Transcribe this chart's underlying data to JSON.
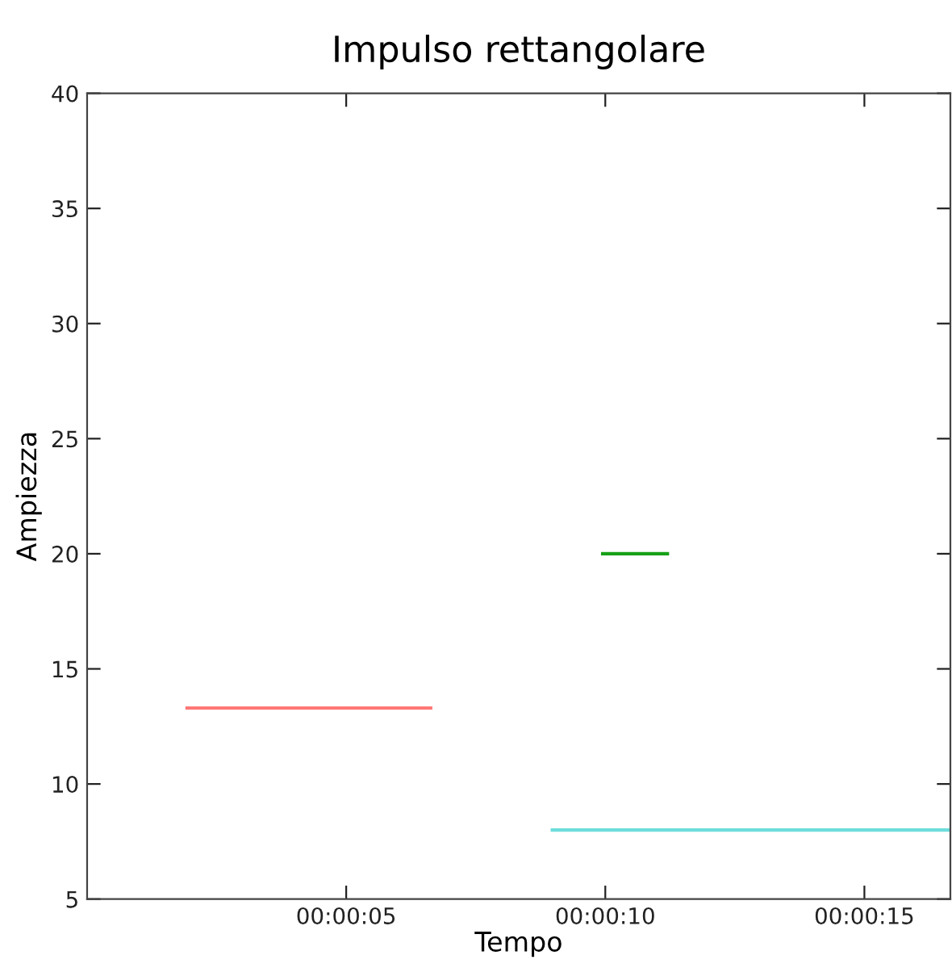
{
  "chart_data": {
    "type": "line",
    "title": "Impulso rettangolare",
    "xlabel": "Tempo",
    "ylabel": "Ampiezza",
    "series": [
      {
        "color": "#ff7777",
        "x": [
          0.000536,
          0.001842
        ],
        "values": [
          13.3,
          13.3
        ]
      },
      {
        "color": "#16a016",
        "x": [
          0.002764,
          0.003111
        ],
        "values": [
          20,
          20
        ]
      },
      {
        "color": "#6edcdc",
        "x": [
          0.002494,
          0.004628
        ],
        "values": [
          8,
          8
        ]
      }
    ],
    "xlim": [
      0,
      0.004628
    ],
    "xticks": [
      {
        "value": 0.001389,
        "label": "00:00:05"
      },
      {
        "value": 0.002778,
        "label": "00:00:10"
      },
      {
        "value": 0.004167,
        "label": "00:00:15"
      }
    ],
    "ylim": [
      5,
      40
    ],
    "yticks": [
      5,
      10,
      15,
      20,
      25,
      30,
      35,
      40
    ],
    "grid": false,
    "marker": "none",
    "line_style": "solid"
  }
}
